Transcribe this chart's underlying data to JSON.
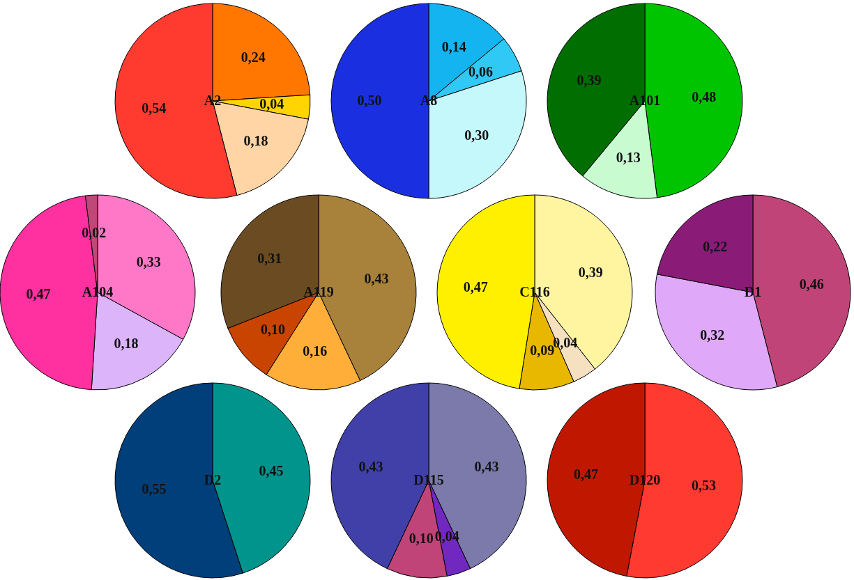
{
  "chart_data": [
    {
      "type": "pie",
      "title": "A2",
      "categories": [
        null,
        null,
        null,
        null
      ],
      "values": [
        0.24,
        0.04,
        0.18,
        0.54
      ],
      "colors": [
        "#ff7700",
        "#ffd400",
        "#ffd5a5",
        "#ff3b30"
      ],
      "value_labels": [
        "0,24",
        "0,04",
        "0,18",
        "0,54"
      ]
    },
    {
      "type": "pie",
      "title": "A8",
      "categories": [
        null,
        null,
        null,
        null
      ],
      "values": [
        0.14,
        0.06,
        0.3,
        0.5
      ],
      "colors": [
        "#14b4f0",
        "#30c8f4",
        "#c5f8fa",
        "#1a30e0"
      ],
      "value_labels": [
        "0,14",
        "0,06",
        "0,30",
        "0,50"
      ]
    },
    {
      "type": "pie",
      "title": "A101",
      "categories": [
        null,
        null,
        null
      ],
      "values": [
        0.48,
        0.13,
        0.39
      ],
      "colors": [
        "#00c400",
        "#c8fcd0",
        "#006e00"
      ],
      "value_labels": [
        "0,48",
        "0,13",
        "0,39"
      ]
    },
    {
      "type": "pie",
      "title": "A104",
      "categories": [
        null,
        null,
        null,
        null
      ],
      "values": [
        0.33,
        0.18,
        0.47,
        0.02
      ],
      "colors": [
        "#ff78c8",
        "#dcb4fa",
        "#ff30a0",
        "#c04878"
      ],
      "value_labels": [
        "0,33",
        "0,18",
        "0,47",
        "0,02"
      ]
    },
    {
      "type": "pie",
      "title": "A119",
      "categories": [
        null,
        null,
        null,
        null
      ],
      "values": [
        0.43,
        0.16,
        0.1,
        0.31
      ],
      "colors": [
        "#a8813a",
        "#ffae3a",
        "#c84400",
        "#6b4c22"
      ],
      "value_labels": [
        "0,43",
        "0,16",
        "0,10",
        "0,31"
      ]
    },
    {
      "type": "pie",
      "title": "C116",
      "categories": [
        null,
        null,
        null,
        null
      ],
      "values": [
        0.39,
        0.04,
        0.09,
        0.47
      ],
      "colors": [
        "#fff5a0",
        "#f5e0c0",
        "#e8b800",
        "#fff000"
      ],
      "value_labels": [
        "0,39",
        "0,04",
        "0,09",
        "0,47"
      ]
    },
    {
      "type": "pie",
      "title": "D1",
      "categories": [
        null,
        null,
        null
      ],
      "values": [
        0.46,
        0.32,
        0.22
      ],
      "colors": [
        "#c04478",
        "#e0a8f8",
        "#8a1c78"
      ],
      "value_labels": [
        "0,46",
        "0,32",
        "0,22"
      ]
    },
    {
      "type": "pie",
      "title": "D2",
      "categories": [
        null,
        null
      ],
      "values": [
        0.45,
        0.55
      ],
      "colors": [
        "#00948c",
        "#003f7a"
      ],
      "value_labels": [
        "0,45",
        "0,55"
      ]
    },
    {
      "type": "pie",
      "title": "D115",
      "categories": [
        null,
        null,
        null,
        null
      ],
      "values": [
        0.43,
        0.04,
        0.1,
        0.43
      ],
      "colors": [
        "#7b7aaa",
        "#7028c0",
        "#c04478",
        "#4040a8"
      ],
      "value_labels": [
        "0,43",
        "0,04",
        "0,10",
        "0,43"
      ]
    },
    {
      "type": "pie",
      "title": "D120",
      "categories": [
        null,
        null
      ],
      "values": [
        0.53,
        0.47
      ],
      "colors": [
        "#ff3a30",
        "#c01800"
      ],
      "value_labels": [
        "0,53",
        "0,47"
      ]
    }
  ]
}
